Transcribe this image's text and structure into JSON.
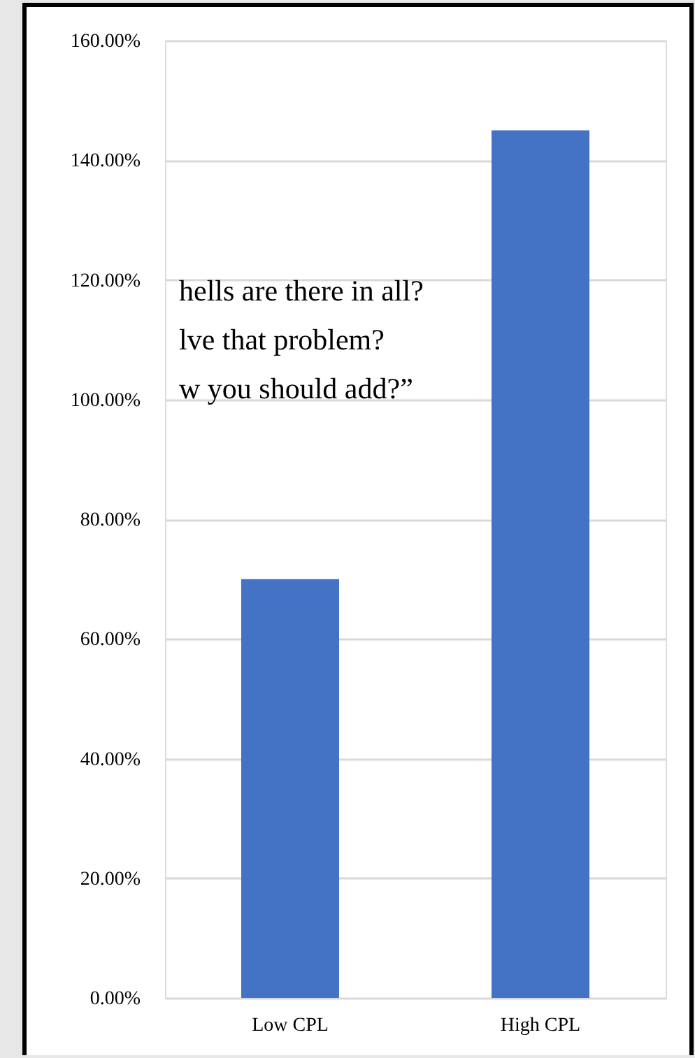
{
  "chart_data": {
    "type": "bar",
    "categories": [
      "Low CPL",
      "High CPL"
    ],
    "series": [
      {
        "color": "#4472c4",
        "values": [
          70,
          145
        ]
      }
    ],
    "ylim": [
      0,
      160
    ],
    "yticks": [
      {
        "value": 0,
        "label": "0.00%"
      },
      {
        "value": 20,
        "label": "20.00%"
      },
      {
        "value": 40,
        "label": "40.00%"
      },
      {
        "value": 60,
        "label": "60.00%"
      },
      {
        "value": 80,
        "label": "80.00%"
      },
      {
        "value": 100,
        "label": "100.00%"
      },
      {
        "value": 120,
        "label": "120.00%"
      },
      {
        "value": 140,
        "label": "140.00%"
      },
      {
        "value": 160,
        "label": "160.00%"
      }
    ],
    "grid": "y",
    "annotations": [
      "hells are there in all?",
      "lve that problem?",
      "w you should add?”"
    ]
  }
}
